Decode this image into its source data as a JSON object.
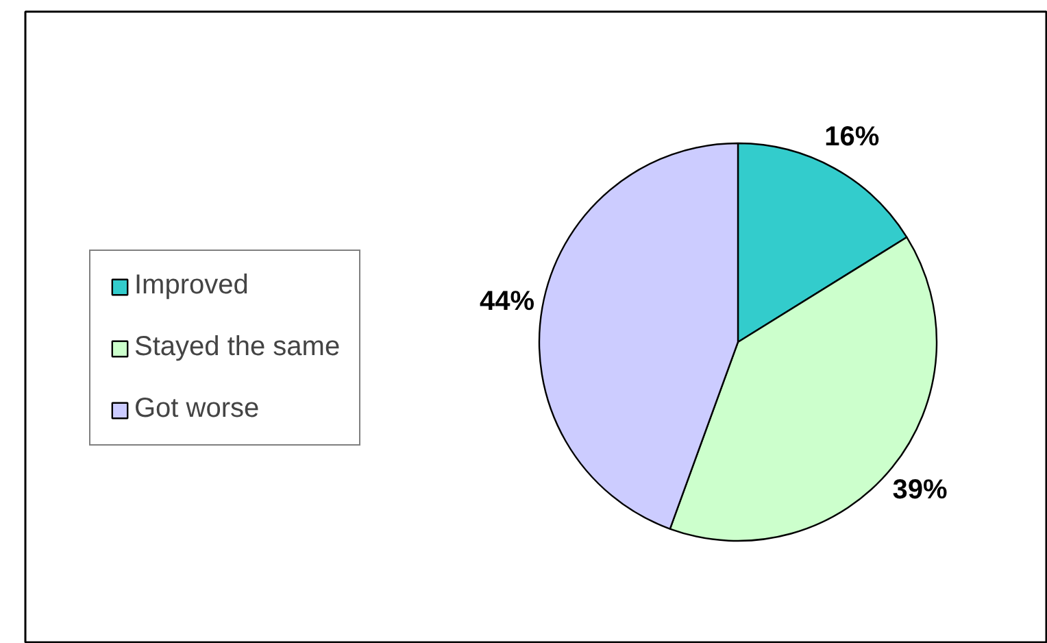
{
  "chart_data": {
    "type": "pie",
    "categories": [
      "Improved",
      "Stayed the same",
      "Got worse"
    ],
    "values": [
      16,
      39,
      44
    ],
    "colors": [
      "#33cccc",
      "#ccffcc",
      "#ccccff"
    ],
    "value_labels": [
      "16%",
      "39%",
      "44%"
    ],
    "legend": "left"
  }
}
